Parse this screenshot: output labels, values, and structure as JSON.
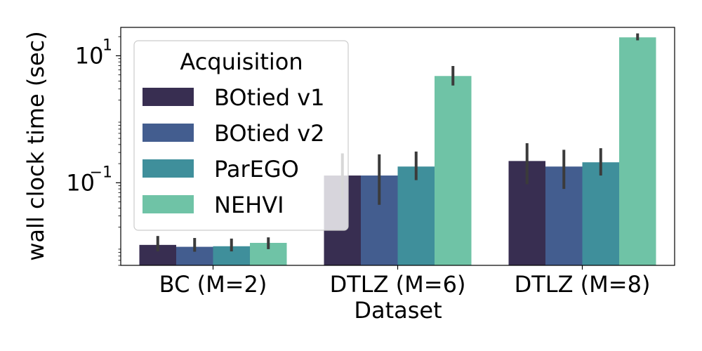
{
  "chart_data": {
    "type": "bar",
    "xlabel": "Dataset",
    "ylabel": "wall clock time (sec)",
    "yscale": "log",
    "ylim": [
      0.005,
      28
    ],
    "ytick_labels": [
      {
        "value": 10,
        "base": "10",
        "exp": "1"
      },
      {
        "value": 0.1,
        "base": "10",
        "exp": "−1"
      }
    ],
    "categories": [
      "BC (M=2)",
      "DTLZ (M=6)",
      "DTLZ (M=8)"
    ],
    "series": [
      {
        "name": "BOtied v1",
        "color": "#382e51",
        "values": [
          0.0105,
          0.13,
          0.22
        ],
        "err_low": [
          0.0083,
          0.055,
          0.095
        ],
        "err_high": [
          0.0145,
          0.29,
          0.42
        ]
      },
      {
        "name": "BOtied v2",
        "color": "#435d8f",
        "values": [
          0.0098,
          0.13,
          0.18
        ],
        "err_low": [
          0.0082,
          0.045,
          0.08
        ],
        "err_high": [
          0.0135,
          0.28,
          0.33
        ]
      },
      {
        "name": "ParEGO",
        "color": "#3f8f9b",
        "values": [
          0.01,
          0.18,
          0.21
        ],
        "err_low": [
          0.0083,
          0.11,
          0.13
        ],
        "err_high": [
          0.0132,
          0.31,
          0.35
        ]
      },
      {
        "name": "NEHVI",
        "color": "#6fc3a6",
        "values": [
          0.0113,
          4.8,
          19.5
        ],
        "err_low": [
          0.009,
          3.4,
          17.5
        ],
        "err_high": [
          0.0138,
          6.9,
          22.5
        ]
      }
    ],
    "legend": {
      "title": "Acquisition",
      "placement": "top-left"
    }
  }
}
